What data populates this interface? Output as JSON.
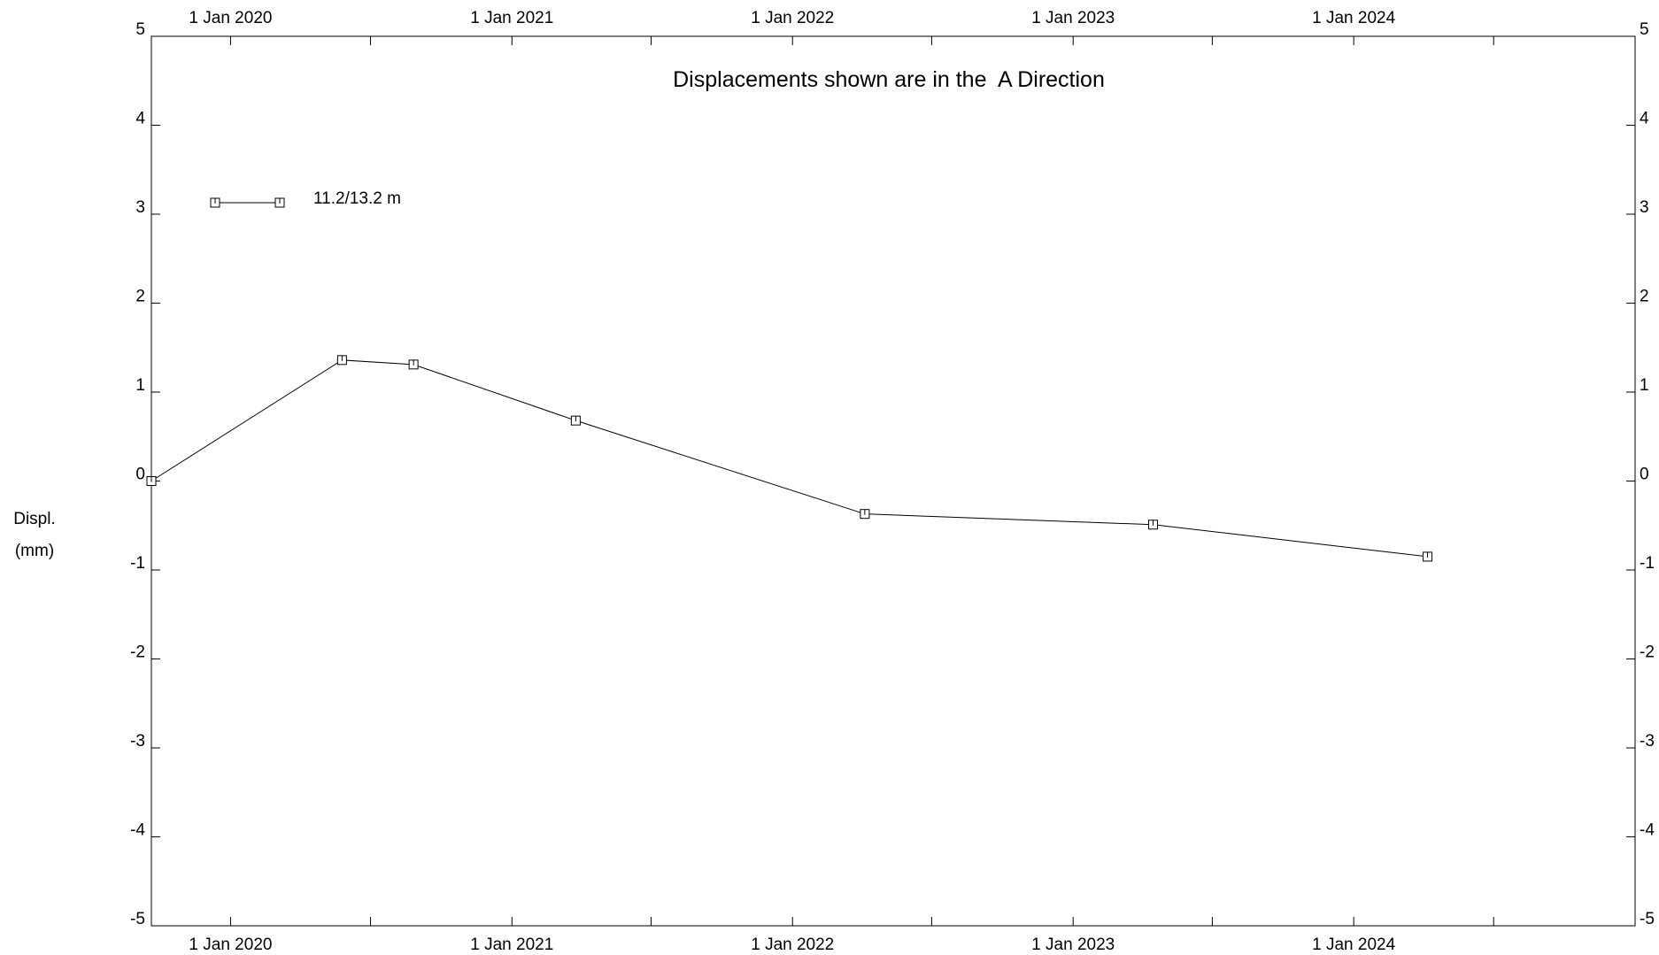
{
  "chart_data": {
    "type": "line",
    "title": "Displacements shown are in the  A Direction",
    "ylabel_line1": "Displ.",
    "ylabel_line2": "(mm)",
    "xlabel": "",
    "xlim": [
      "2019-09-20",
      "2025-01-01"
    ],
    "ylim": [
      -5,
      5
    ],
    "y_ticks": [
      5,
      4,
      3,
      2,
      1,
      0,
      -1,
      -2,
      -3,
      -4,
      -5
    ],
    "x_ticks": [
      {
        "date": "2020-01-01",
        "label": "1 Jan 2020"
      },
      {
        "date": "2021-01-01",
        "label": "1 Jan 2021"
      },
      {
        "date": "2022-01-01",
        "label": "1 Jan 2022"
      },
      {
        "date": "2023-01-01",
        "label": "1 Jan 2023"
      },
      {
        "date": "2024-01-01",
        "label": "1 Jan 2024"
      }
    ],
    "x_minor_ticks": [
      "2020-07-01",
      "2021-07-01",
      "2022-07-01",
      "2023-07-01",
      "2024-07-01"
    ],
    "grid": false,
    "legend_position": "top-left",
    "marker": "square",
    "line_color": "#000000",
    "series": [
      {
        "name": "11.2/13.2 m",
        "x": [
          "2019-09-20",
          "2020-05-25",
          "2020-08-26",
          "2021-03-25",
          "2022-04-05",
          "2023-04-15",
          "2024-04-06"
        ],
        "y": [
          0.0,
          1.36,
          1.31,
          0.68,
          -0.37,
          -0.49,
          -0.85
        ]
      }
    ]
  }
}
